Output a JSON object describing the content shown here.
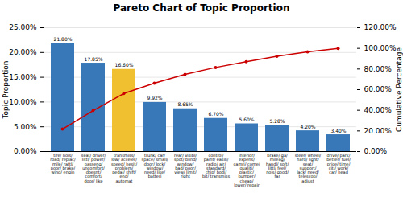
{
  "chart_data": {
    "type": "bar",
    "title": "Pareto Chart of Topic Proportion",
    "categories": [
      "tire/ nois/\nroad/ replac/\nmile/ rattl/\npoor/ brake/\nwind/ engin",
      "seat/ driver/\nlittl/ power/\npasseng/\nuncomfort/\ndoesnt/\ncomfort/\ndoor/ like",
      "transmiss/\nlow/ acceler/\nspeed/ hesit/\nproblem/\npedal/ shift/\nend/\nautomat",
      "trunk/ car/\nspace/ small/\ndoor/ lock/\nwindow/\nneed/ like/\nbatteri",
      "rear/ visibl/\nspot/ blind/\nwindow/\nbad/ poor/\nview/ limit/\nright",
      "control/\npaint/ easili/\nradio/ air/\nstandard/\nchip/ bodi/\nbit/ transmiss",
      "interior/\nexpens/\ncamri/ come/\nqualiti/\nplastic/\nbumper/\ncheap/\nlower/ repair",
      "brake/ ga/\nmileag/\nhandl/ soft/\nlittl/ feel/\nnois/ good/\nfar",
      "steer/ wheel/\nhard/ light/\nseat/\nsupport/\nlack/ need/\ntelescop/\nadjust",
      "drive/ park/\nbetter/ fuel/\nprice/ time/\nciti/ work/\ncar/ head"
    ],
    "series": [
      {
        "type": "bar",
        "colors": [
          "#3878B8",
          "#3878B8",
          "#F0C030",
          "#3878B8",
          "#3878B8",
          "#3878B8",
          "#3878B8",
          "#3878B8",
          "#3878B8",
          "#3878B8"
        ],
        "values": [
          21.8,
          17.85,
          16.6,
          9.92,
          8.65,
          6.7,
          5.6,
          5.28,
          4.2,
          3.4
        ],
        "value_labels": [
          "21.80%",
          "17.85%",
          "16.60%",
          "9.92%",
          "8.65%",
          "6.70%",
          "5.60%",
          "5.28%",
          "4.20%",
          "3.40%"
        ]
      },
      {
        "type": "line",
        "axis": "y2",
        "color": "#CC0000",
        "marker": "circle",
        "values": [
          21.8,
          39.65,
          56.25,
          66.17,
          74.82,
          81.52,
          87.12,
          92.4,
          96.6,
          100.0
        ]
      }
    ],
    "data_labels": true,
    "grid": true,
    "ylabel": "Topic Proportion",
    "y2label": "Cumulative Percentage",
    "ylim": [
      0,
      25
    ],
    "yticks": [
      {
        "value": 0,
        "label": "0.00%"
      },
      {
        "value": 5,
        "label": "5.00%"
      },
      {
        "value": 10,
        "label": "10.00%"
      },
      {
        "value": 15,
        "label": "15.00%"
      },
      {
        "value": 20,
        "label": "20.00%"
      },
      {
        "value": 25,
        "label": "25.00%"
      }
    ],
    "y2lim": [
      0,
      120
    ],
    "y2ticks": [
      {
        "value": 0,
        "label": "0.00%"
      },
      {
        "value": 20,
        "label": "20.00%"
      },
      {
        "value": 40,
        "label": "40.00%"
      },
      {
        "value": 60,
        "label": "60.00%"
      },
      {
        "value": 80,
        "label": "80.00%"
      },
      {
        "value": 100,
        "label": "100.00%"
      },
      {
        "value": 120,
        "label": "120.00%"
      }
    ]
  }
}
